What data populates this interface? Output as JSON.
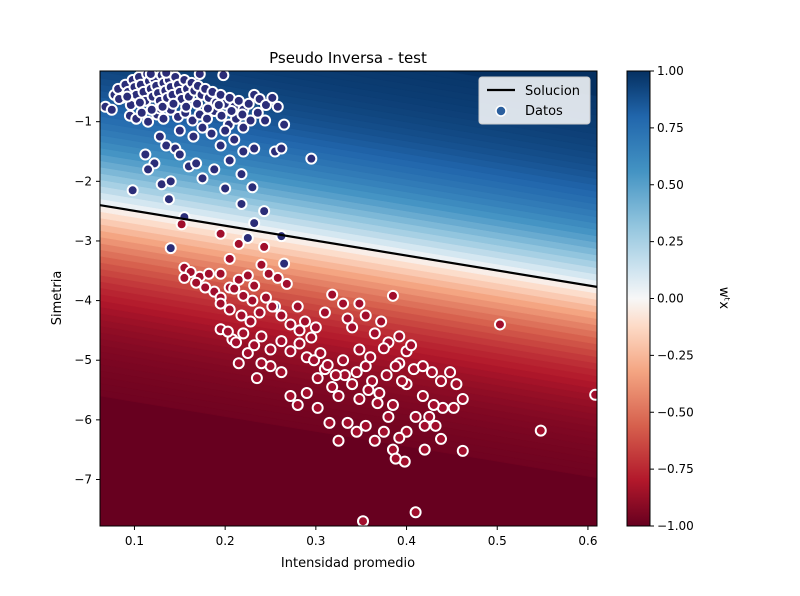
{
  "chart_data": {
    "type": "scatter",
    "title": "Pseudo Inversa - test",
    "xlabel": "Intensidad promedio",
    "ylabel": "Simetria",
    "xlim": [
      0.062,
      0.61
    ],
    "ylim": [
      -7.78,
      -0.15
    ],
    "xticks": [
      0.1,
      0.2,
      0.3,
      0.4,
      0.5,
      0.6
    ],
    "xtick_labels": [
      "0.1",
      "0.2",
      "0.3",
      "0.4",
      "0.5",
      "0.6"
    ],
    "yticks": [
      -1,
      -2,
      -3,
      -4,
      -5,
      -6,
      -7
    ],
    "ytick_labels": [
      "−1",
      "−2",
      "−3",
      "−4",
      "−5",
      "−6",
      "−7"
    ],
    "grid": false,
    "legend": {
      "placement": "top-right",
      "entries": [
        {
          "label": "Solucion",
          "kind": "line",
          "color": "#000000"
        },
        {
          "label": "Datos",
          "kind": "marker",
          "color": "#2b5f9e"
        }
      ]
    },
    "colorbar": {
      "label": "wᵗx",
      "range": [
        -1.0,
        1.0
      ],
      "ticks": [
        1.0,
        0.75,
        0.5,
        0.25,
        0.0,
        -0.25,
        -0.5,
        -0.75,
        -1.0
      ],
      "tick_labels": [
        "1.00",
        "0.75",
        "0.50",
        "0.25",
        "0.00",
        "−0.25",
        "−0.50",
        "−0.75",
        "−1.00"
      ],
      "colormap": "RdBu"
    },
    "solution_line": {
      "x": [
        0.062,
        0.61
      ],
      "y": [
        -2.4,
        -3.77
      ]
    },
    "marker_colors": {
      "class_pos": "#2b2d78",
      "class_neg": "#a10e2c",
      "edge": "#ffffff"
    },
    "series": [
      {
        "class": 1,
        "points": [
          [
            0.068,
            -0.75
          ],
          [
            0.078,
            -0.55
          ],
          [
            0.082,
            -0.45
          ],
          [
            0.086,
            -0.6
          ],
          [
            0.09,
            -0.38
          ],
          [
            0.093,
            -0.5
          ],
          [
            0.096,
            -0.72
          ],
          [
            0.098,
            -0.3
          ],
          [
            0.1,
            -0.42
          ],
          [
            0.102,
            -0.55
          ],
          [
            0.105,
            -0.25
          ],
          [
            0.107,
            -0.38
          ],
          [
            0.11,
            -0.5
          ],
          [
            0.112,
            -0.65
          ],
          [
            0.114,
            -0.2
          ],
          [
            0.116,
            -0.32
          ],
          [
            0.118,
            -0.45
          ],
          [
            0.12,
            -0.58
          ],
          [
            0.122,
            -0.28
          ],
          [
            0.124,
            -0.4
          ],
          [
            0.126,
            -0.52
          ],
          [
            0.128,
            -0.65
          ],
          [
            0.13,
            -0.22
          ],
          [
            0.132,
            -0.35
          ],
          [
            0.134,
            -0.48
          ],
          [
            0.136,
            -0.6
          ],
          [
            0.138,
            -0.3
          ],
          [
            0.14,
            -0.42
          ],
          [
            0.142,
            -0.55
          ],
          [
            0.145,
            -0.25
          ],
          [
            0.148,
            -0.38
          ],
          [
            0.15,
            -0.5
          ],
          [
            0.152,
            -0.62
          ],
          [
            0.155,
            -0.3
          ],
          [
            0.158,
            -0.45
          ],
          [
            0.16,
            -0.58
          ],
          [
            0.163,
            -0.35
          ],
          [
            0.166,
            -0.48
          ],
          [
            0.17,
            -0.4
          ],
          [
            0.174,
            -0.55
          ],
          [
            0.178,
            -0.45
          ],
          [
            0.182,
            -0.6
          ],
          [
            0.186,
            -0.5
          ],
          [
            0.19,
            -0.68
          ],
          [
            0.195,
            -0.55
          ],
          [
            0.2,
            -0.7
          ],
          [
            0.205,
            -0.6
          ],
          [
            0.21,
            -0.75
          ],
          [
            0.215,
            -0.65
          ],
          [
            0.22,
            -0.8
          ],
          [
            0.226,
            -0.7
          ],
          [
            0.232,
            -0.55
          ],
          [
            0.238,
            -0.62
          ],
          [
            0.245,
            -0.72
          ],
          [
            0.252,
            -0.6
          ],
          [
            0.258,
            -0.75
          ],
          [
            0.198,
            -0.22
          ],
          [
            0.172,
            -0.2
          ],
          [
            0.135,
            -0.18
          ],
          [
            0.118,
            -0.2
          ],
          [
            0.095,
            -0.9
          ],
          [
            0.102,
            -0.95
          ],
          [
            0.108,
            -0.85
          ],
          [
            0.115,
            -1.0
          ],
          [
            0.125,
            -0.88
          ],
          [
            0.132,
            -0.95
          ],
          [
            0.14,
            -0.8
          ],
          [
            0.148,
            -0.92
          ],
          [
            0.156,
            -0.85
          ],
          [
            0.164,
            -0.98
          ],
          [
            0.172,
            -0.88
          ],
          [
            0.18,
            -0.95
          ],
          [
            0.188,
            -0.82
          ],
          [
            0.196,
            -0.9
          ],
          [
            0.204,
            -1.05
          ],
          [
            0.212,
            -0.95
          ],
          [
            0.22,
            -1.1
          ],
          [
            0.228,
            -0.98
          ],
          [
            0.236,
            -0.85
          ],
          [
            0.244,
            -0.98
          ],
          [
            0.265,
            -1.05
          ],
          [
            0.175,
            -1.1
          ],
          [
            0.185,
            -1.2
          ],
          [
            0.2,
            -1.15
          ],
          [
            0.21,
            -1.3
          ],
          [
            0.195,
            -1.4
          ],
          [
            0.15,
            -1.15
          ],
          [
            0.128,
            -1.25
          ],
          [
            0.112,
            -1.55
          ],
          [
            0.122,
            -1.7
          ],
          [
            0.13,
            -2.05
          ],
          [
            0.135,
            -1.4
          ],
          [
            0.145,
            -1.45
          ],
          [
            0.15,
            -1.55
          ],
          [
            0.16,
            -1.75
          ],
          [
            0.168,
            -1.7
          ],
          [
            0.175,
            -1.95
          ],
          [
            0.188,
            -1.8
          ],
          [
            0.205,
            -1.65
          ],
          [
            0.22,
            -1.5
          ],
          [
            0.232,
            -1.45
          ],
          [
            0.255,
            -1.5
          ],
          [
            0.262,
            -1.45
          ],
          [
            0.295,
            -1.62
          ],
          [
            0.098,
            -2.15
          ],
          [
            0.115,
            -1.8
          ],
          [
            0.14,
            -2.0
          ],
          [
            0.138,
            -2.3
          ],
          [
            0.155,
            -2.6
          ],
          [
            0.2,
            -2.12
          ],
          [
            0.218,
            -1.88
          ],
          [
            0.23,
            -2.1
          ],
          [
            0.218,
            -2.38
          ],
          [
            0.243,
            -2.5
          ],
          [
            0.232,
            -2.7
          ],
          [
            0.225,
            -2.95
          ],
          [
            0.262,
            -2.92
          ],
          [
            0.265,
            -3.38
          ],
          [
            0.255,
            -4.1
          ],
          [
            0.14,
            -3.12
          ],
          [
            0.128,
            -0.78
          ],
          [
            0.083,
            -0.62
          ],
          [
            0.075,
            -0.8
          ],
          [
            0.092,
            -0.58
          ],
          [
            0.106,
            -0.68
          ],
          [
            0.119,
            -0.8
          ],
          [
            0.131,
            -0.75
          ],
          [
            0.143,
            -0.7
          ],
          [
            0.157,
            -0.75
          ],
          [
            0.169,
            -0.7
          ],
          [
            0.181,
            -0.78
          ],
          [
            0.193,
            -0.72
          ],
          [
            0.207,
            -0.82
          ],
          [
            0.219,
            -0.88
          ],
          [
            0.165,
            -1.25
          ]
        ]
      },
      {
        "class": -1,
        "points": [
          [
            0.152,
            -2.72
          ],
          [
            0.195,
            -2.88
          ],
          [
            0.215,
            -3.05
          ],
          [
            0.243,
            -3.1
          ],
          [
            0.205,
            -3.3
          ],
          [
            0.195,
            -3.55
          ],
          [
            0.155,
            -3.45
          ],
          [
            0.162,
            -3.52
          ],
          [
            0.172,
            -3.6
          ],
          [
            0.182,
            -3.55
          ],
          [
            0.155,
            -3.62
          ],
          [
            0.168,
            -3.7
          ],
          [
            0.178,
            -3.78
          ],
          [
            0.188,
            -3.85
          ],
          [
            0.195,
            -3.95
          ],
          [
            0.205,
            -3.78
          ],
          [
            0.215,
            -3.65
          ],
          [
            0.225,
            -3.58
          ],
          [
            0.232,
            -3.75
          ],
          [
            0.24,
            -3.4
          ],
          [
            0.248,
            -3.55
          ],
          [
            0.258,
            -3.62
          ],
          [
            0.268,
            -3.72
          ],
          [
            0.21,
            -3.8
          ],
          [
            0.22,
            -3.92
          ],
          [
            0.23,
            -4.0
          ],
          [
            0.195,
            -4.05
          ],
          [
            0.205,
            -4.15
          ],
          [
            0.218,
            -4.25
          ],
          [
            0.228,
            -4.35
          ],
          [
            0.238,
            -4.2
          ],
          [
            0.245,
            -3.95
          ],
          [
            0.252,
            -4.1
          ],
          [
            0.262,
            -4.25
          ],
          [
            0.272,
            -4.4
          ],
          [
            0.282,
            -4.5
          ],
          [
            0.195,
            -4.48
          ],
          [
            0.208,
            -4.65
          ],
          [
            0.22,
            -4.55
          ],
          [
            0.232,
            -4.75
          ],
          [
            0.24,
            -4.6
          ],
          [
            0.25,
            -4.82
          ],
          [
            0.262,
            -4.68
          ],
          [
            0.272,
            -4.85
          ],
          [
            0.282,
            -4.72
          ],
          [
            0.29,
            -4.95
          ],
          [
            0.3,
            -4.45
          ],
          [
            0.31,
            -4.2
          ],
          [
            0.318,
            -3.9
          ],
          [
            0.33,
            -4.05
          ],
          [
            0.335,
            -4.3
          ],
          [
            0.348,
            -4.05
          ],
          [
            0.355,
            -4.25
          ],
          [
            0.365,
            -4.55
          ],
          [
            0.372,
            -4.35
          ],
          [
            0.38,
            -4.7
          ],
          [
            0.385,
            -3.92
          ],
          [
            0.392,
            -4.6
          ],
          [
            0.4,
            -4.85
          ],
          [
            0.405,
            -4.75
          ],
          [
            0.298,
            -5.0
          ],
          [
            0.302,
            -5.3
          ],
          [
            0.31,
            -5.15
          ],
          [
            0.318,
            -5.45
          ],
          [
            0.325,
            -5.6
          ],
          [
            0.332,
            -5.25
          ],
          [
            0.34,
            -5.4
          ],
          [
            0.348,
            -5.65
          ],
          [
            0.355,
            -5.1
          ],
          [
            0.362,
            -5.35
          ],
          [
            0.37,
            -5.55
          ],
          [
            0.378,
            -5.25
          ],
          [
            0.385,
            -5.75
          ],
          [
            0.392,
            -5.05
          ],
          [
            0.4,
            -5.4
          ],
          [
            0.408,
            -5.15
          ],
          [
            0.418,
            -5.1
          ],
          [
            0.428,
            -5.2
          ],
          [
            0.438,
            -5.35
          ],
          [
            0.448,
            -5.2
          ],
          [
            0.455,
            -5.4
          ],
          [
            0.462,
            -5.65
          ],
          [
            0.452,
            -5.8
          ],
          [
            0.44,
            -5.8
          ],
          [
            0.43,
            -5.75
          ],
          [
            0.42,
            -6.1
          ],
          [
            0.41,
            -5.95
          ],
          [
            0.4,
            -6.2
          ],
          [
            0.392,
            -6.3
          ],
          [
            0.385,
            -6.5
          ],
          [
            0.375,
            -6.2
          ],
          [
            0.365,
            -6.35
          ],
          [
            0.355,
            -6.1
          ],
          [
            0.345,
            -6.2
          ],
          [
            0.335,
            -6.05
          ],
          [
            0.325,
            -6.35
          ],
          [
            0.315,
            -6.05
          ],
          [
            0.302,
            -5.8
          ],
          [
            0.29,
            -5.55
          ],
          [
            0.28,
            -5.75
          ],
          [
            0.272,
            -5.6
          ],
          [
            0.262,
            -5.2
          ],
          [
            0.25,
            -5.1
          ],
          [
            0.24,
            -5.05
          ],
          [
            0.225,
            -4.88
          ],
          [
            0.212,
            -4.7
          ],
          [
            0.203,
            -4.52
          ],
          [
            0.215,
            -5.05
          ],
          [
            0.235,
            -5.3
          ],
          [
            0.34,
            -4.45
          ],
          [
            0.348,
            -4.82
          ],
          [
            0.36,
            -4.95
          ],
          [
            0.375,
            -4.8
          ],
          [
            0.388,
            -5.1
          ],
          [
            0.395,
            -5.35
          ],
          [
            0.418,
            -5.6
          ],
          [
            0.425,
            -5.95
          ],
          [
            0.432,
            -6.1
          ],
          [
            0.438,
            -6.32
          ],
          [
            0.42,
            -6.5
          ],
          [
            0.398,
            -6.7
          ],
          [
            0.388,
            -6.65
          ],
          [
            0.462,
            -6.52
          ],
          [
            0.548,
            -6.18
          ],
          [
            0.608,
            -5.58
          ],
          [
            0.503,
            -4.4
          ],
          [
            0.41,
            -7.55
          ],
          [
            0.352,
            -7.7
          ],
          [
            0.28,
            -4.1
          ],
          [
            0.288,
            -4.35
          ],
          [
            0.295,
            -4.62
          ],
          [
            0.305,
            -4.88
          ],
          [
            0.313,
            -5.08
          ],
          [
            0.322,
            -5.25
          ],
          [
            0.33,
            -5.0
          ],
          [
            0.345,
            -5.2
          ],
          [
            0.358,
            -5.5
          ],
          [
            0.368,
            -5.72
          ],
          [
            0.38,
            -5.95
          ]
        ]
      }
    ]
  }
}
